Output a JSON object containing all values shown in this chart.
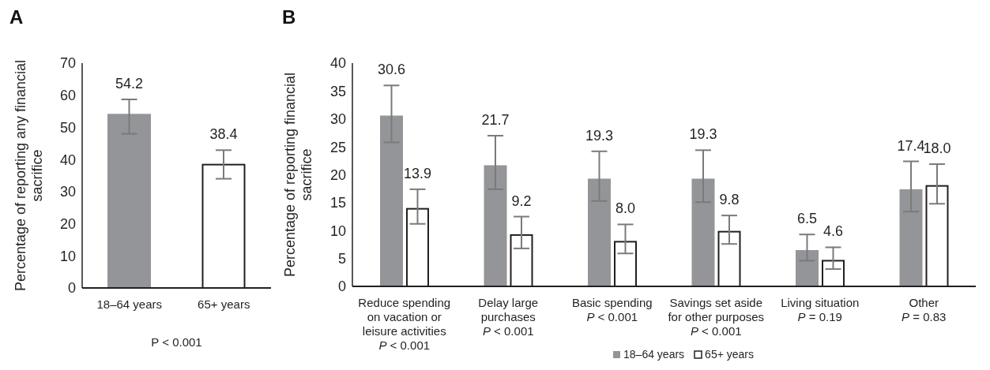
{
  "chart_data": [
    {
      "type": "bar",
      "title": "A",
      "ylabel": "Percentage of reporting any financial\nsacrifice",
      "categories": [
        "18–64 years",
        "65+ years"
      ],
      "values": [
        54.2,
        38.4
      ],
      "value_labels": [
        "54.2",
        "38.4"
      ],
      "colors": [
        "#939598",
        "#ffffff"
      ],
      "errors": [
        [
          48.0,
          58.7
        ],
        [
          34.0,
          42.9
        ]
      ],
      "ylim": [
        0,
        70
      ],
      "yticks": [
        0,
        10,
        20,
        30,
        40,
        50,
        60,
        70
      ],
      "grid": false,
      "legend": false,
      "annotations": [
        "P < 0.001"
      ]
    },
    {
      "type": "bar",
      "title": "B",
      "ylabel": "Percentage of reporting financial\nsacrifice",
      "categories": [
        "Reduce spending\non vacation or\nleisure activities\nP < 0.001",
        "Delay large\npurchases\nP < 0.001",
        "Basic spending\nP < 0.001",
        "Savings set aside\nfor other purposes\nP < 0.001",
        "Living situation\nP = 0.19",
        "Other\nP = 0.83"
      ],
      "series": [
        {
          "name": "18–64 years",
          "color": "#939598",
          "values": [
            30.6,
            21.7,
            19.3,
            19.3,
            6.5,
            17.4
          ],
          "value_labels": [
            "30.6",
            "21.7",
            "19.3",
            "19.3",
            "6.5",
            "17.4"
          ],
          "errors": [
            [
              25.8,
              36.0
            ],
            [
              17.4,
              27.0
            ],
            [
              15.3,
              24.2
            ],
            [
              15.1,
              24.4
            ],
            [
              4.6,
              9.3
            ],
            [
              13.4,
              22.4
            ]
          ]
        },
        {
          "name": "65+ years",
          "color": "#ffffff",
          "values": [
            13.9,
            9.2,
            8.0,
            9.8,
            4.6,
            18.0
          ],
          "value_labels": [
            "13.9",
            "9.2",
            "8.0",
            "9.8",
            "4.6",
            "18.0"
          ],
          "errors": [
            [
              11.2,
              17.4
            ],
            [
              6.8,
              12.5
            ],
            [
              5.9,
              11.1
            ],
            [
              7.6,
              12.7
            ],
            [
              3.1,
              7.0
            ],
            [
              14.8,
              21.9
            ]
          ]
        }
      ],
      "ylim": [
        0,
        40
      ],
      "yticks": [
        0,
        5,
        10,
        15,
        20,
        25,
        30,
        35,
        40
      ],
      "grid": false,
      "legend": "bottom"
    }
  ]
}
